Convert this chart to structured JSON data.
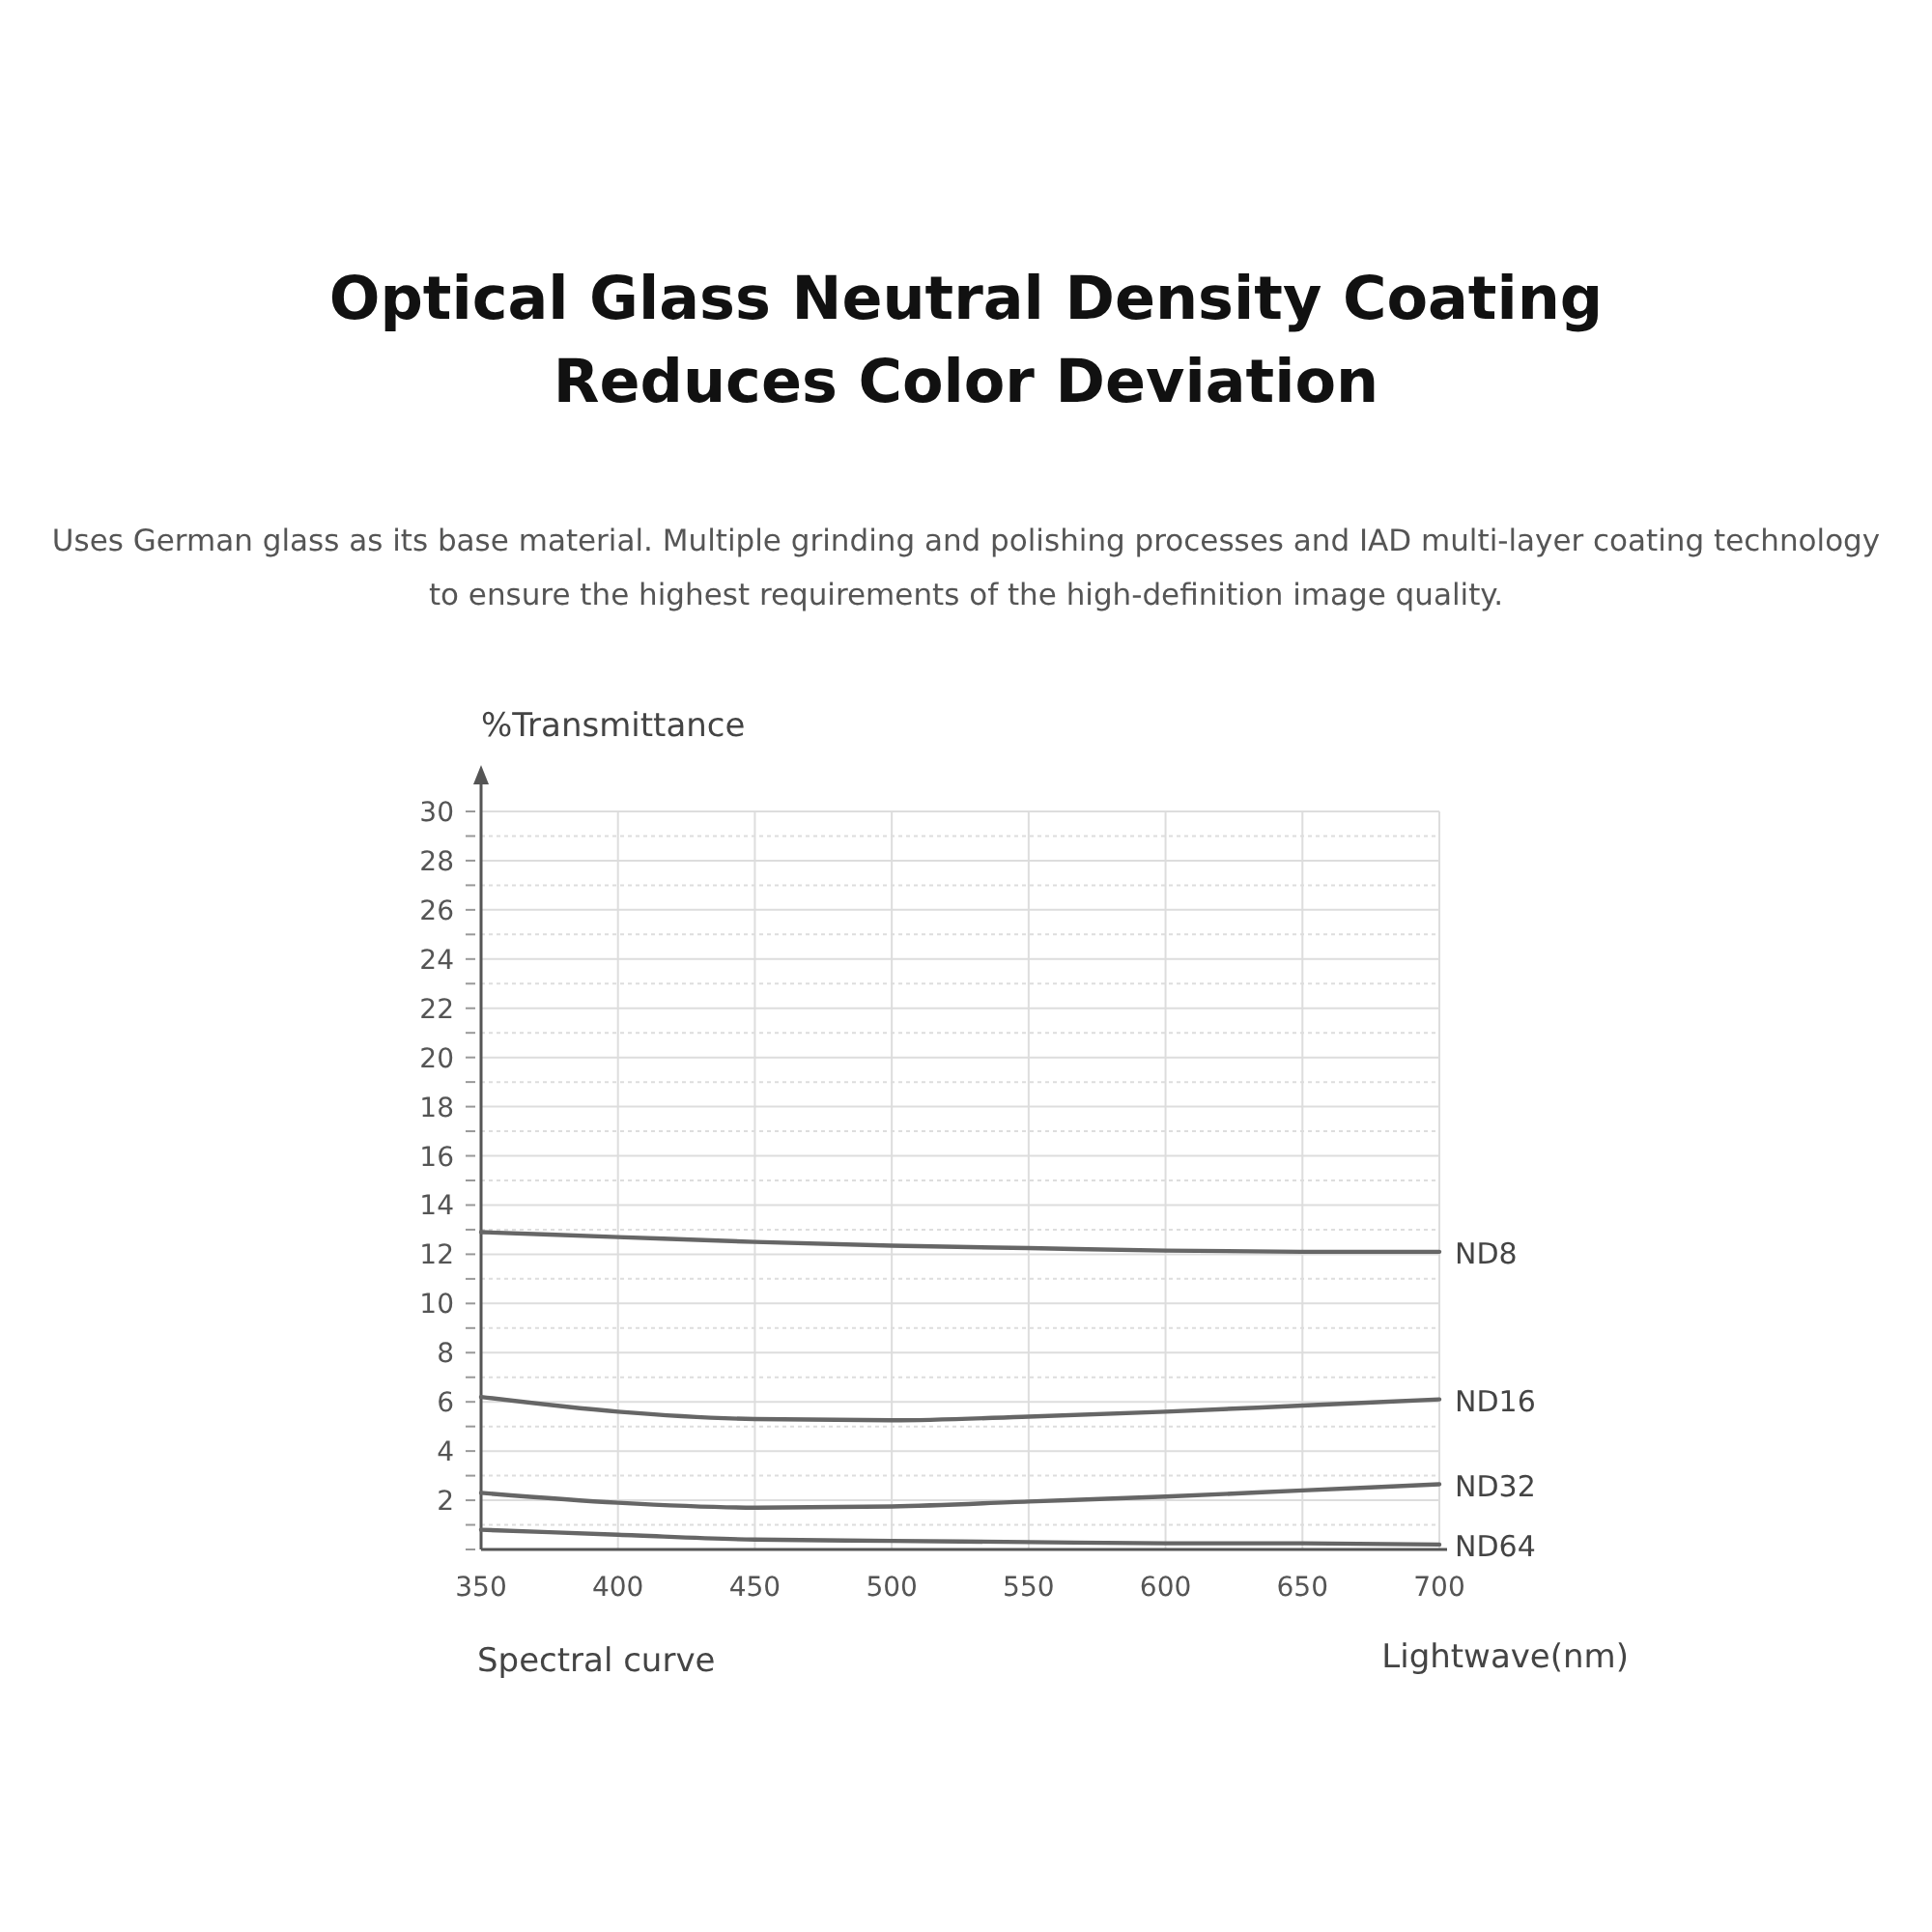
{
  "chart_data": {
    "type": "line",
    "title": "Optical Glass Neutral Density Coating Reduces Color Deviation",
    "subtitle": "Uses German glass as its base material. Multiple grinding and polishing processes and IAD multi-layer coating technology to ensure the highest requirements of the high-definition image quality.",
    "xlabel": "Lightwave(nm)",
    "ylabel": "%Transmittance",
    "annotations": [
      "Spectral curve"
    ],
    "x": [
      350,
      400,
      450,
      500,
      550,
      600,
      650,
      700
    ],
    "series": [
      {
        "name": "ND8",
        "color": "#666666",
        "values": [
          12.9,
          12.7,
          12.5,
          12.35,
          12.25,
          12.15,
          12.1,
          12.1
        ]
      },
      {
        "name": "ND16",
        "color": "#666666",
        "values": [
          6.2,
          5.6,
          5.3,
          5.25,
          5.4,
          5.6,
          5.85,
          6.1
        ]
      },
      {
        "name": "ND32",
        "color": "#666666",
        "values": [
          2.3,
          1.9,
          1.7,
          1.75,
          1.95,
          2.15,
          2.4,
          2.65
        ]
      },
      {
        "name": "ND64",
        "color": "#666666",
        "values": [
          0.8,
          0.6,
          0.4,
          0.35,
          0.3,
          0.25,
          0.25,
          0.2
        ]
      }
    ],
    "xlim": [
      350,
      700
    ],
    "xticks": [
      350,
      400,
      450,
      500,
      550,
      600,
      650,
      700
    ],
    "ylim": [
      0,
      30
    ],
    "yticks": [
      {
        "value": 0,
        "label": null
      },
      {
        "value": 1,
        "label": null
      },
      2,
      {
        "value": 3,
        "label": null
      },
      4,
      {
        "value": 5,
        "label": null
      },
      6,
      {
        "value": 7,
        "label": null
      },
      8,
      {
        "value": 9,
        "label": null
      },
      10,
      {
        "value": 11,
        "label": null
      },
      12,
      {
        "value": 13,
        "label": null
      },
      14,
      {
        "value": 15,
        "label": null
      },
      16,
      {
        "value": 17,
        "label": null
      },
      18,
      {
        "value": 19,
        "label": null
      },
      20,
      {
        "value": 21,
        "label": null
      },
      22,
      {
        "value": 23,
        "label": null
      },
      24,
      {
        "value": 25,
        "label": null
      },
      26,
      {
        "value": 27,
        "label": null
      },
      28,
      {
        "value": 29,
        "label": null
      },
      30
    ],
    "grid": true,
    "legend": false,
    "marker": "none",
    "line_style": "solid"
  }
}
